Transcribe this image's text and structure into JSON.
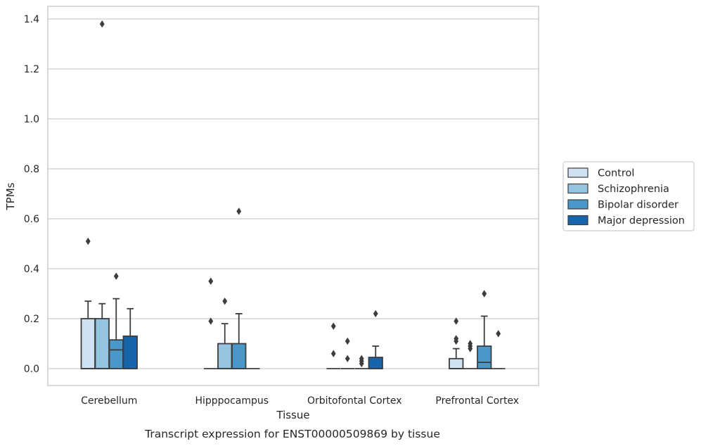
{
  "chart_data": {
    "type": "box",
    "caption": "Transcript expression for ENST00000509869 by tissue",
    "xlabel": "Tissue",
    "ylabel": "TPMs",
    "ylim": [
      -0.068,
      1.45
    ],
    "yticks": [
      0.0,
      0.2,
      0.4,
      0.6,
      0.8,
      1.0,
      1.2,
      1.4
    ],
    "grid": true,
    "legend_position": "right",
    "categories": [
      "Cerebellum",
      "Hipppocampus",
      "Orbitofontal Cortex",
      "Prefrontal Cortex"
    ],
    "series": [
      {
        "name": "Control",
        "color": "#d0e1f2",
        "boxes": [
          {
            "q1": 0.0,
            "median": 0.0,
            "q3": 0.2,
            "whisker_low": 0.0,
            "whisker_high": 0.27,
            "outliers": [
              0.51
            ]
          },
          {
            "q1": 0.0,
            "median": 0.0,
            "q3": 0.0,
            "whisker_low": 0.0,
            "whisker_high": 0.0,
            "outliers": [
              0.35,
              0.19
            ]
          },
          {
            "q1": 0.0,
            "median": 0.0,
            "q3": 0.0,
            "whisker_low": 0.0,
            "whisker_high": 0.0,
            "outliers": [
              0.17,
              0.06
            ]
          },
          {
            "q1": 0.0,
            "median": 0.0,
            "q3": 0.04,
            "whisker_low": 0.0,
            "whisker_high": 0.08,
            "outliers": [
              0.19,
              0.12,
              0.11
            ]
          }
        ]
      },
      {
        "name": "Schizophrenia",
        "color": "#94c4df",
        "boxes": [
          {
            "q1": 0.0,
            "median": 0.0,
            "q3": 0.2,
            "whisker_low": 0.0,
            "whisker_high": 0.26,
            "outliers": [
              1.38
            ]
          },
          {
            "q1": 0.0,
            "median": 0.0,
            "q3": 0.1,
            "whisker_low": 0.0,
            "whisker_high": 0.18,
            "outliers": [
              0.27
            ]
          },
          {
            "q1": 0.0,
            "median": 0.0,
            "q3": 0.0,
            "whisker_low": 0.0,
            "whisker_high": 0.0,
            "outliers": [
              0.11,
              0.04
            ]
          },
          {
            "q1": 0.0,
            "median": 0.0,
            "q3": 0.0,
            "whisker_low": 0.0,
            "whisker_high": 0.0,
            "outliers": [
              0.1,
              0.09,
              0.08
            ]
          }
        ]
      },
      {
        "name": "Bipolar disorder",
        "color": "#4a98c9",
        "boxes": [
          {
            "q1": 0.0,
            "median": 0.075,
            "q3": 0.115,
            "whisker_low": 0.0,
            "whisker_high": 0.28,
            "outliers": [
              0.37
            ]
          },
          {
            "q1": 0.0,
            "median": 0.0,
            "q3": 0.1,
            "whisker_low": 0.0,
            "whisker_high": 0.22,
            "outliers": [
              0.63
            ]
          },
          {
            "q1": 0.0,
            "median": 0.0,
            "q3": 0.0,
            "whisker_low": 0.0,
            "whisker_high": 0.0,
            "outliers": [
              0.04,
              0.03,
              0.02
            ]
          },
          {
            "q1": 0.0,
            "median": 0.025,
            "q3": 0.09,
            "whisker_low": 0.0,
            "whisker_high": 0.21,
            "outliers": [
              0.3
            ]
          }
        ]
      },
      {
        "name": "Major depression",
        "color": "#1764ab",
        "boxes": [
          {
            "q1": 0.0,
            "median": 0.0,
            "q3": 0.13,
            "whisker_low": 0.0,
            "whisker_high": 0.24,
            "outliers": []
          },
          {
            "q1": 0.0,
            "median": 0.0,
            "q3": 0.0,
            "whisker_low": 0.0,
            "whisker_high": 0.0,
            "outliers": []
          },
          {
            "q1": 0.0,
            "median": 0.0,
            "q3": 0.045,
            "whisker_low": 0.0,
            "whisker_high": 0.09,
            "outliers": [
              0.22
            ]
          },
          {
            "q1": 0.0,
            "median": 0.0,
            "q3": 0.0,
            "whisker_low": 0.0,
            "whisker_high": 0.0,
            "outliers": [
              0.14
            ]
          }
        ]
      }
    ]
  }
}
